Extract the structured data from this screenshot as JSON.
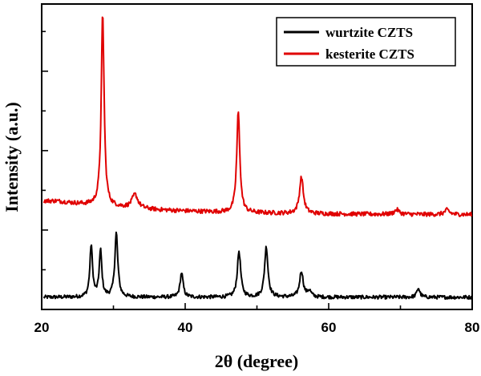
{
  "chart_data": {
    "type": "line",
    "xlabel": "2θ (degree)",
    "ylabel": "Intensity (a.u.)",
    "xlim": [
      20,
      80
    ],
    "ylim": [
      0,
      100
    ],
    "x_ticks": [
      "20",
      "40",
      "60",
      "80"
    ],
    "y_ticks_labeled": false,
    "legend_position": "top-right",
    "series": [
      {
        "name": "wurtzite CZTS",
        "color": "#000000",
        "baseline": 4,
        "noise": 0.6,
        "peaks": [
          {
            "x": 26.9,
            "height": 17,
            "width": 0.22
          },
          {
            "x": 28.2,
            "height": 15,
            "width": 0.22
          },
          {
            "x": 30.4,
            "height": 21,
            "width": 0.25
          },
          {
            "x": 39.5,
            "height": 8,
            "width": 0.25
          },
          {
            "x": 47.5,
            "height": 15,
            "width": 0.28
          },
          {
            "x": 51.3,
            "height": 16.5,
            "width": 0.28
          },
          {
            "x": 56.2,
            "height": 8.5,
            "width": 0.3
          },
          {
            "x": 57.3,
            "height": 2,
            "width": 0.3
          },
          {
            "x": 72.5,
            "height": 3,
            "width": 0.25
          }
        ]
      },
      {
        "name": "kesterite CZTS",
        "color": "#e00000",
        "baseline": 31,
        "noise": 0.7,
        "broad": {
          "center": 22,
          "amp": 4.5,
          "decay": 14
        },
        "peaks": [
          {
            "x": 28.5,
            "height": 63,
            "width": 0.24
          },
          {
            "x": 33.0,
            "height": 4.5,
            "width": 0.5
          },
          {
            "x": 47.4,
            "height": 33,
            "width": 0.26
          },
          {
            "x": 56.2,
            "height": 12,
            "width": 0.32
          },
          {
            "x": 69.5,
            "height": 1.5,
            "width": 0.4
          },
          {
            "x": 76.5,
            "height": 1.5,
            "width": 0.4
          }
        ]
      }
    ]
  }
}
